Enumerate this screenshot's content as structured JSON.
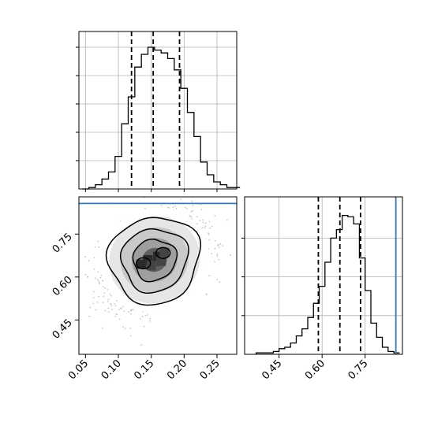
{
  "chart_data": [
    {
      "type": "histogram",
      "panel": "marginal-x",
      "title": "",
      "xlabel": "",
      "ylabel": "",
      "xlim": [
        0.04,
        0.28
      ],
      "ylim": [
        0,
        1.0
      ],
      "grid": true,
      "bins": [
        0.045,
        0.055,
        0.065,
        0.075,
        0.085,
        0.095,
        0.105,
        0.115,
        0.125,
        0.135,
        0.145,
        0.155,
        0.165,
        0.175,
        0.185,
        0.195,
        0.205,
        0.215,
        0.225,
        0.235,
        0.245,
        0.255,
        0.265,
        0.275,
        0.285
      ],
      "counts": [
        0.0,
        0.01,
        0.03,
        0.07,
        0.12,
        0.23,
        0.46,
        0.65,
        0.86,
        0.95,
        1.0,
        0.98,
        0.96,
        0.92,
        0.84,
        0.71,
        0.54,
        0.37,
        0.19,
        0.1,
        0.05,
        0.03,
        0.01,
        0.01
      ],
      "quantile_lines": [
        0.12,
        0.153,
        0.193
      ],
      "truth_line": null
    },
    {
      "type": "scatter-contour",
      "panel": "joint",
      "title": "",
      "xlabel": "",
      "ylabel": "",
      "xlim": [
        0.04,
        0.28
      ],
      "ylim": [
        0.33,
        0.88
      ],
      "grid": false,
      "x_ticks": [
        "0.05",
        "0.10",
        "0.15",
        "0.20",
        "0.25"
      ],
      "y_ticks": [
        "0.45",
        "0.60",
        "0.75"
      ],
      "center": [
        0.155,
        0.66
      ],
      "spread": [
        0.035,
        0.075
      ],
      "correlation": 0.35,
      "truth_y": 0.857
    },
    {
      "type": "histogram",
      "panel": "marginal-y",
      "title": "",
      "xlabel": "",
      "ylabel": "",
      "xlim": [
        0.33,
        0.88
      ],
      "ylim": [
        0,
        1.0
      ],
      "grid": true,
      "x_ticks": [
        "0.45",
        "0.60",
        "0.75"
      ],
      "bins": [
        0.37,
        0.39,
        0.41,
        0.43,
        0.45,
        0.47,
        0.49,
        0.51,
        0.53,
        0.55,
        0.57,
        0.59,
        0.61,
        0.63,
        0.65,
        0.67,
        0.69,
        0.71,
        0.73,
        0.75,
        0.77,
        0.79,
        0.81,
        0.83,
        0.85,
        0.87
      ],
      "counts": [
        0.01,
        0.01,
        0.01,
        0.02,
        0.04,
        0.05,
        0.08,
        0.13,
        0.18,
        0.26,
        0.36,
        0.48,
        0.65,
        0.82,
        0.88,
        0.98,
        0.97,
        0.92,
        0.68,
        0.45,
        0.22,
        0.12,
        0.05,
        0.02,
        0.01
      ],
      "quantile_lines": [
        0.587,
        0.662,
        0.734
      ],
      "truth_line": 0.857
    }
  ],
  "colors": {
    "truth_line": "#3a78b4",
    "hist_line": "#000000",
    "grid": "#b0b0b0",
    "scatter": "#9a9a9a",
    "density_dark": "#1e1e1e"
  }
}
